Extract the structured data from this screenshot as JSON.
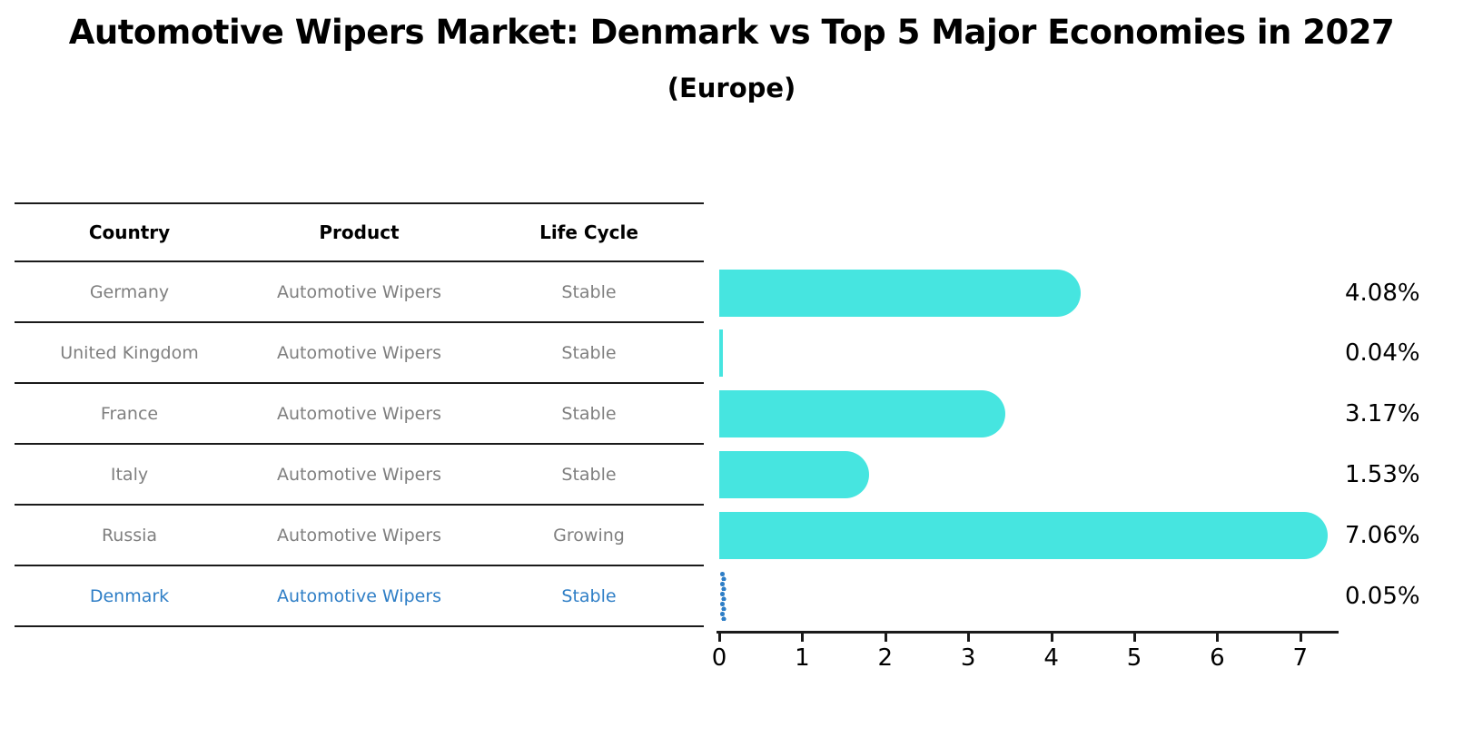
{
  "title": "Automotive Wipers Market: Denmark vs Top 5 Major Economies in 2027",
  "subtitle": "(Europe)",
  "table": {
    "headers": [
      "Country",
      "Product",
      "Life Cycle"
    ],
    "rows": [
      {
        "country": "Germany",
        "product": "Automotive Wipers",
        "life_cycle": "Stable"
      },
      {
        "country": "United Kingdom",
        "product": "Automotive Wipers",
        "life_cycle": "Stable"
      },
      {
        "country": "France",
        "product": "Automotive Wipers",
        "life_cycle": "Stable"
      },
      {
        "country": "Italy",
        "product": "Automotive Wipers",
        "life_cycle": "Stable"
      },
      {
        "country": "Russia",
        "product": "Automotive Wipers",
        "life_cycle": "Growing"
      },
      {
        "country": "Denmark",
        "product": "Automotive Wipers",
        "life_cycle": "Stable"
      }
    ]
  },
  "chart_data": {
    "type": "bar",
    "orientation": "horizontal",
    "title": "Automotive Wipers Market: Denmark vs Top 5 Major Economies in 2027",
    "subtitle": "(Europe)",
    "categories": [
      "Germany",
      "United Kingdom",
      "France",
      "Italy",
      "Russia",
      "Denmark"
    ],
    "values": [
      4.08,
      0.04,
      3.17,
      1.53,
      7.06,
      0.05
    ],
    "labels": [
      "4.08%",
      "0.04%",
      "3.17%",
      "1.53%",
      "7.06%",
      "0.05%"
    ],
    "xticks": [
      0,
      1,
      2,
      3,
      4,
      5,
      6,
      7
    ],
    "xlim": [
      0,
      7.45
    ],
    "xlabel": "",
    "ylabel": "",
    "grid": false,
    "legend": false,
    "highlight_index": 5,
    "highlight_style": "blue dotted marker bar",
    "bar_color": "#46e5e0",
    "highlight_color": "#2e7ec6"
  },
  "colors": {
    "bar": "#46e5e0",
    "highlight": "#2e7ec6",
    "muted_text": "#7f7f7f",
    "line": "#1a1a1a",
    "text": "#000000"
  }
}
